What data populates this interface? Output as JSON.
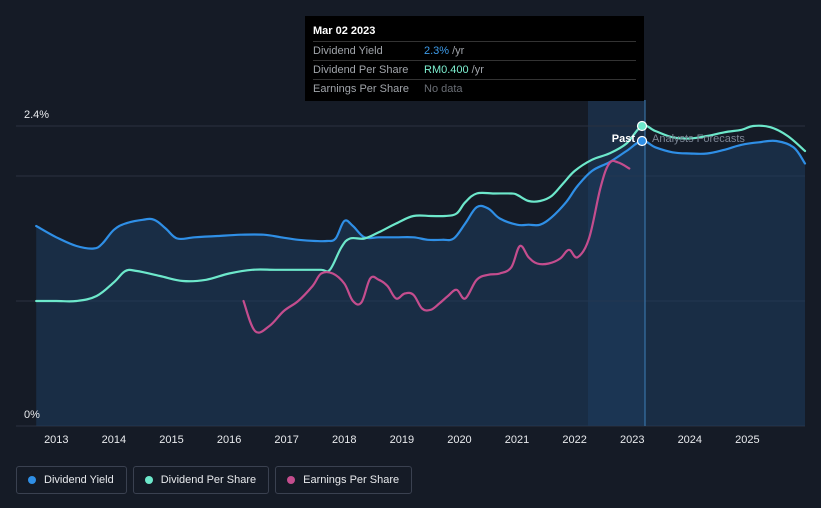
{
  "tooltip": {
    "date": "Mar 02 2023",
    "rows": [
      {
        "label": "Dividend Yield",
        "value": "2.3%",
        "unit": "/yr"
      },
      {
        "label": "Dividend Per Share",
        "value": "RM0.400",
        "unit": "/yr"
      },
      {
        "label": "Earnings Per Share",
        "value": "No data",
        "unit": ""
      }
    ]
  },
  "markers": {
    "past": "Past",
    "forecast": "Analysts Forecasts"
  },
  "legend": [
    {
      "label": "Dividend Yield",
      "color": "#2f8fe6"
    },
    {
      "label": "Dividend Per Share",
      "color": "#6de8cb"
    },
    {
      "label": "Earnings Per Share",
      "color": "#c44d8e"
    }
  ],
  "colors": {
    "yield": "#2f8fe6",
    "dps": "#6de8cb",
    "eps": "#c44d8e",
    "grid": "#2a3140",
    "forecast_band": "#1e3650"
  },
  "chart_data": {
    "type": "line",
    "title": "",
    "xlabel": "",
    "ylabel": "",
    "x_ticks": [
      "2013",
      "2014",
      "2015",
      "2016",
      "2017",
      "2018",
      "2019",
      "2020",
      "2021",
      "2022",
      "2023",
      "2024",
      "2025"
    ],
    "y_ticks": [
      {
        "value": 0,
        "label": "0%"
      },
      {
        "value": 2.4,
        "label": "2.4%"
      }
    ],
    "xlim": [
      2012.3,
      2026.0
    ],
    "ylim": [
      0,
      2.4
    ],
    "past_forecast_split": 2023.17,
    "series": [
      {
        "name": "Dividend Yield",
        "unit": "%",
        "x": [
          2012.65,
          2013.0,
          2013.35,
          2013.65,
          2013.8,
          2014.0,
          2014.2,
          2014.5,
          2014.7,
          2014.9,
          2015.1,
          2015.4,
          2015.8,
          2016.2,
          2016.6,
          2016.9,
          2017.2,
          2017.5,
          2017.7,
          2017.85,
          2018.0,
          2018.15,
          2018.35,
          2018.6,
          2018.9,
          2019.2,
          2019.45,
          2019.7,
          2019.9,
          2020.1,
          2020.3,
          2020.5,
          2020.7,
          2021.0,
          2021.2,
          2021.4,
          2021.6,
          2021.85,
          2022.05,
          2022.3,
          2022.6,
          2022.9,
          2023.17,
          2023.4,
          2023.7,
          2024.0,
          2024.3,
          2024.6,
          2024.9,
          2025.2,
          2025.5,
          2025.8,
          2026.0
        ],
        "values": [
          1.6,
          1.51,
          1.44,
          1.42,
          1.46,
          1.57,
          1.62,
          1.65,
          1.65,
          1.58,
          1.5,
          1.51,
          1.52,
          1.53,
          1.53,
          1.51,
          1.49,
          1.48,
          1.48,
          1.5,
          1.64,
          1.6,
          1.51,
          1.51,
          1.51,
          1.51,
          1.49,
          1.49,
          1.5,
          1.62,
          1.75,
          1.74,
          1.66,
          1.61,
          1.61,
          1.61,
          1.67,
          1.79,
          1.92,
          2.04,
          2.11,
          2.2,
          2.28,
          2.23,
          2.19,
          2.18,
          2.18,
          2.21,
          2.25,
          2.27,
          2.28,
          2.23,
          2.1
        ]
      },
      {
        "name": "Dividend Per Share",
        "unit": "%",
        "x": [
          2012.65,
          2013.0,
          2013.35,
          2013.7,
          2014.0,
          2014.2,
          2014.4,
          2014.8,
          2015.2,
          2015.6,
          2016.0,
          2016.4,
          2016.8,
          2017.2,
          2017.6,
          2017.75,
          2017.95,
          2018.1,
          2018.35,
          2018.6,
          2018.9,
          2019.2,
          2019.5,
          2019.75,
          2019.95,
          2020.1,
          2020.3,
          2020.6,
          2020.9,
          2021.0,
          2021.2,
          2021.4,
          2021.6,
          2021.8,
          2022.0,
          2022.3,
          2022.6,
          2022.9,
          2023.17,
          2023.4,
          2023.7,
          2024.0,
          2024.3,
          2024.6,
          2024.9,
          2025.1,
          2025.4,
          2025.7,
          2026.0
        ],
        "values": [
          1.0,
          1.0,
          1.0,
          1.04,
          1.15,
          1.24,
          1.24,
          1.2,
          1.16,
          1.17,
          1.22,
          1.25,
          1.25,
          1.25,
          1.25,
          1.25,
          1.43,
          1.5,
          1.5,
          1.55,
          1.62,
          1.68,
          1.68,
          1.68,
          1.7,
          1.79,
          1.86,
          1.86,
          1.86,
          1.85,
          1.8,
          1.8,
          1.84,
          1.94,
          2.04,
          2.13,
          2.18,
          2.26,
          2.4,
          2.36,
          2.31,
          2.3,
          2.32,
          2.35,
          2.37,
          2.4,
          2.39,
          2.32,
          2.2
        ]
      },
      {
        "name": "Earnings Per Share",
        "unit": "%",
        "x": [
          2016.25,
          2016.45,
          2016.7,
          2016.95,
          2017.2,
          2017.45,
          2017.6,
          2017.8,
          2018.0,
          2018.15,
          2018.3,
          2018.45,
          2018.6,
          2018.75,
          2018.9,
          2019.05,
          2019.2,
          2019.35,
          2019.5,
          2019.65,
          2019.8,
          2019.95,
          2020.1,
          2020.3,
          2020.5,
          2020.7,
          2020.9,
          2021.05,
          2021.2,
          2021.35,
          2021.55,
          2021.75,
          2021.9,
          2022.05,
          2022.25,
          2022.45,
          2022.6,
          2022.75,
          2022.95
        ],
        "values": [
          1.0,
          0.76,
          0.8,
          0.92,
          1.0,
          1.12,
          1.22,
          1.22,
          1.14,
          1.0,
          0.99,
          1.18,
          1.17,
          1.12,
          1.02,
          1.06,
          1.05,
          0.94,
          0.93,
          0.98,
          1.04,
          1.09,
          1.02,
          1.17,
          1.21,
          1.22,
          1.27,
          1.44,
          1.35,
          1.3,
          1.3,
          1.34,
          1.41,
          1.35,
          1.5,
          1.91,
          2.1,
          2.11,
          2.06
        ]
      }
    ]
  }
}
